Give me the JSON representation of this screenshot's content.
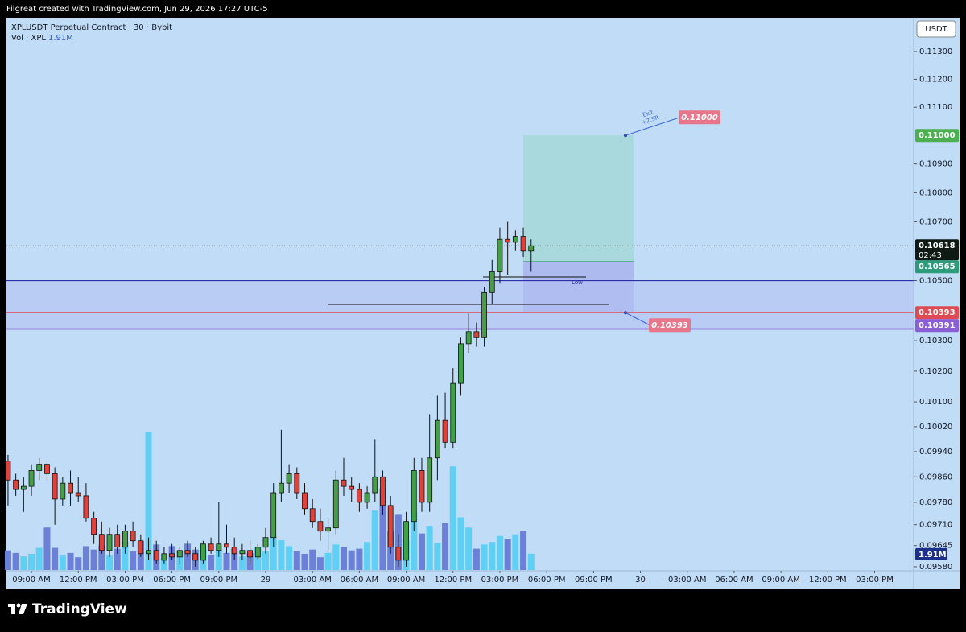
{
  "header": {
    "credit": "Filgreat created with TradingView.com, Jun 29, 2026 17:27 UTC-5",
    "brand": "TradingView"
  },
  "chart_data": {
    "type": "candlestick",
    "title": "XPLUSDT Perpetual Contract · 30 · Bybit",
    "volume_title": "Vol · XPL",
    "volume_value": {
      "value": 1.91,
      "label": "1.91M"
    },
    "currency": "USDT",
    "log_scale": true,
    "ylim": [
      0.0957,
      0.11423
    ],
    "yticks": [
      {
        "value": 0.113,
        "label": "0.11300"
      },
      {
        "value": 0.112,
        "label": "0.11200"
      },
      {
        "value": 0.111,
        "label": "0.11100"
      },
      {
        "value": 0.109,
        "label": "0.10900"
      },
      {
        "value": 0.108,
        "label": "0.10800"
      },
      {
        "value": 0.107,
        "label": "0.10700"
      },
      {
        "value": 0.105,
        "label": "0.10500"
      },
      {
        "value": 0.103,
        "label": "0.10300"
      },
      {
        "value": 0.102,
        "label": "0.10200"
      },
      {
        "value": 0.101,
        "label": "0.10100"
      },
      {
        "value": 0.1002,
        "label": "0.10020"
      },
      {
        "value": 0.0994,
        "label": "0.09940"
      },
      {
        "value": 0.0986,
        "label": "0.09860"
      },
      {
        "value": 0.0978,
        "label": "0.09780"
      },
      {
        "value": 0.0971,
        "label": "0.09710"
      },
      {
        "value": 0.09645,
        "label": "0.09645"
      },
      {
        "value": 0.0958,
        "label": "0.09580"
      }
    ],
    "xlim": [
      -0.2,
      116
    ],
    "xticks": [
      {
        "value": 3,
        "label": "09:00 AM"
      },
      {
        "value": 9,
        "label": "12:00 PM"
      },
      {
        "value": 15,
        "label": "03:00 PM"
      },
      {
        "value": 21,
        "label": "06:00 PM"
      },
      {
        "value": 27,
        "label": "09:00 PM"
      },
      {
        "value": 33,
        "label": "29"
      },
      {
        "value": 39,
        "label": "03:00 AM"
      },
      {
        "value": 45,
        "label": "06:00 AM"
      },
      {
        "value": 51,
        "label": "09:00 AM"
      },
      {
        "value": 57,
        "label": "12:00 PM"
      },
      {
        "value": 63,
        "label": "03:00 PM"
      },
      {
        "value": 69,
        "label": "06:00 PM"
      },
      {
        "value": 75,
        "label": "09:00 PM"
      },
      {
        "value": 81,
        "label": "30"
      },
      {
        "value": 87,
        "label": "03:00 AM"
      },
      {
        "value": 93,
        "label": "06:00 AM"
      },
      {
        "value": 99,
        "label": "09:00 AM"
      },
      {
        "value": 105,
        "label": "12:00 PM"
      },
      {
        "value": 111,
        "label": "03:00 PM"
      }
    ],
    "up_color": "#43a047",
    "down_color": "#e0423a",
    "volume_up_color": "#5fd0f4",
    "volume_down_color": "#6b80d6",
    "volume_lim": [
      0,
      65
    ],
    "open": [
      0.0991,
      0.0985,
      0.0982,
      0.0983,
      0.0988,
      0.099,
      0.0987,
      0.0979,
      0.0984,
      0.0981,
      0.098,
      0.0973,
      0.0968,
      0.0963,
      0.0968,
      0.0964,
      0.0969,
      0.0966,
      0.0962,
      0.0963,
      0.096,
      0.0962,
      0.0961,
      0.0963,
      0.0962,
      0.096,
      0.0965,
      0.0963,
      0.0965,
      0.0964,
      0.0962,
      0.0963,
      0.0961,
      0.0964,
      0.0967,
      0.0981,
      0.0984,
      0.0987,
      0.0981,
      0.0976,
      0.0972,
      0.0969,
      0.097,
      0.0985,
      0.0983,
      0.0982,
      0.0978,
      0.0981,
      0.0986,
      0.0977,
      0.0964,
      0.096,
      0.0972,
      0.0988,
      0.0978,
      0.0992,
      0.1004,
      0.0997,
      0.1016,
      0.1029,
      0.1033,
      0.1031,
      0.1046,
      0.1053,
      0.1064,
      0.1063,
      0.1065,
      0.106
    ],
    "high": [
      0.0993,
      0.0987,
      0.0986,
      0.099,
      0.0992,
      0.0991,
      0.0989,
      0.0986,
      0.0988,
      0.0986,
      0.0984,
      0.0975,
      0.0972,
      0.097,
      0.0971,
      0.0971,
      0.0972,
      0.0968,
      0.0967,
      0.0966,
      0.0964,
      0.0965,
      0.0964,
      0.0966,
      0.0964,
      0.0966,
      0.0967,
      0.0978,
      0.0971,
      0.0967,
      0.0965,
      0.0966,
      0.0965,
      0.097,
      0.0984,
      0.1001,
      0.099,
      0.0989,
      0.0984,
      0.0979,
      0.0976,
      0.0973,
      0.0988,
      0.0992,
      0.0986,
      0.0984,
      0.0983,
      0.0998,
      0.0988,
      0.098,
      0.0968,
      0.0975,
      0.0992,
      0.0992,
      0.1006,
      0.1012,
      0.1013,
      0.1021,
      0.1031,
      0.1039,
      0.1036,
      0.1048,
      0.1057,
      0.1068,
      0.107,
      0.1067,
      0.1068,
      0.1064
    ],
    "low": [
      0.0977,
      0.098,
      0.0975,
      0.098,
      0.0985,
      0.0985,
      0.0971,
      0.0977,
      0.0977,
      0.0978,
      0.0972,
      0.0965,
      0.0962,
      0.0961,
      0.0962,
      0.0962,
      0.0964,
      0.0961,
      0.096,
      0.0959,
      0.0959,
      0.096,
      0.0959,
      0.0961,
      0.0958,
      0.0959,
      0.0962,
      0.0961,
      0.0962,
      0.096,
      0.096,
      0.0959,
      0.096,
      0.0962,
      0.0964,
      0.0978,
      0.0981,
      0.0979,
      0.0974,
      0.097,
      0.0966,
      0.0963,
      0.0968,
      0.098,
      0.0978,
      0.0975,
      0.0976,
      0.0978,
      0.0974,
      0.0962,
      0.0958,
      0.0958,
      0.0969,
      0.0975,
      0.0975,
      0.0985,
      0.0995,
      0.0995,
      0.1012,
      0.1026,
      0.1028,
      0.1028,
      0.1042,
      0.1049,
      0.1052,
      0.106,
      0.1058,
      0.1053
    ],
    "close": [
      0.0985,
      0.0982,
      0.0983,
      0.0988,
      0.099,
      0.0987,
      0.0979,
      0.0984,
      0.0981,
      0.098,
      0.0973,
      0.0968,
      0.0963,
      0.0968,
      0.0964,
      0.0969,
      0.0966,
      0.0962,
      0.0963,
      0.096,
      0.0962,
      0.0961,
      0.0963,
      0.0962,
      0.096,
      0.0965,
      0.0963,
      0.0965,
      0.0964,
      0.0962,
      0.0963,
      0.0961,
      0.0964,
      0.0967,
      0.0981,
      0.0984,
      0.0987,
      0.0981,
      0.0976,
      0.0972,
      0.0969,
      0.097,
      0.0985,
      0.0983,
      0.0982,
      0.0978,
      0.0981,
      0.0986,
      0.0977,
      0.0964,
      0.096,
      0.0972,
      0.0988,
      0.0978,
      0.0992,
      0.1004,
      0.0997,
      0.1016,
      0.1029,
      0.1033,
      0.1031,
      0.1046,
      0.1053,
      0.1064,
      0.1063,
      0.1065,
      0.106,
      0.10618
    ],
    "volume": [
      2.3,
      2.0,
      1.6,
      1.9,
      2.6,
      5.0,
      2.6,
      1.8,
      2.0,
      1.5,
      2.8,
      2.4,
      2.9,
      1.8,
      2.5,
      3.3,
      2.2,
      3.4,
      16.3,
      3.0,
      1.9,
      2.8,
      2.2,
      3.1,
      2.4,
      2.6,
      1.8,
      2.9,
      2.0,
      2.5,
      1.6,
      2.0,
      2.7,
      2.2,
      4.0,
      3.5,
      2.8,
      2.2,
      1.9,
      2.4,
      1.5,
      2.0,
      3.0,
      2.7,
      2.3,
      2.5,
      3.3,
      7.0,
      9.6,
      4.6,
      6.5,
      3.5,
      6.8,
      4.3,
      5.2,
      3.2,
      5.5,
      12.2,
      6.2,
      5.0,
      2.5,
      3.0,
      3.3,
      4.0,
      3.6,
      4.2,
      4.6,
      1.91
    ],
    "current_price": {
      "value": 0.10618,
      "label": "0.10618",
      "countdown": "02:43"
    },
    "level": 0.105,
    "zone_bottom": {
      "value": 0.10391,
      "label": "0.10391"
    },
    "position": {
      "entry": {
        "value": 0.10565,
        "label": "0.10565"
      },
      "target": {
        "value": 0.11,
        "label": "0.11000"
      },
      "stop": {
        "value": 0.10393,
        "label": "0.10393"
      },
      "note": [
        "Exit",
        "+2.5R"
      ]
    },
    "low_label": "Low"
  }
}
